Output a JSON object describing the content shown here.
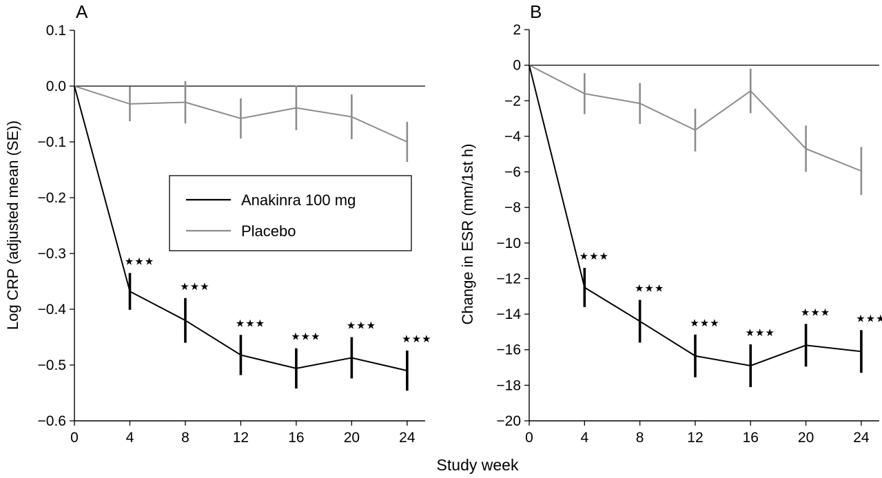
{
  "figure": {
    "xlabel": "Study week",
    "legend": {
      "entries": [
        "Anakinra 100 mg",
        "Placebo"
      ]
    },
    "significance_marker": "★★★",
    "colors": {
      "anakinra": "#000000",
      "placebo": "#8c8c8c"
    }
  },
  "chart_data": [
    {
      "type": "line",
      "panel_label": "A",
      "xlabel": "Study week",
      "ylabel": "Log CRP (adjusted mean (SE))",
      "x": [
        0,
        4,
        8,
        12,
        16,
        20,
        24
      ],
      "xticks": [
        "0",
        "4",
        "8",
        "12",
        "16",
        "20",
        "24"
      ],
      "xlim": [
        0,
        25.3
      ],
      "ylim": [
        -0.6,
        0.1
      ],
      "yticks": [
        "0.1",
        "0.0",
        "−0.1",
        "−0.2",
        "−0.3",
        "−0.4",
        "−0.5",
        "−0.6"
      ],
      "ytick_values": [
        0.1,
        0.0,
        -0.1,
        -0.2,
        -0.3,
        -0.4,
        -0.5,
        -0.6
      ],
      "reference_line": 0,
      "legend_position": "center",
      "series": [
        {
          "name": "Anakinra 100 mg",
          "color": "#000000",
          "values": [
            0,
            -0.368,
            -0.42,
            -0.482,
            -0.506,
            -0.487,
            -0.51
          ],
          "se": [
            0,
            0.033,
            0.04,
            0.036,
            0.036,
            0.037,
            0.036
          ],
          "significant": [
            false,
            true,
            true,
            true,
            true,
            true,
            true
          ]
        },
        {
          "name": "Placebo",
          "color": "#8c8c8c",
          "values": [
            0,
            -0.032,
            -0.029,
            -0.058,
            -0.039,
            -0.055,
            -0.1
          ],
          "se": [
            0,
            0.031,
            0.038,
            0.036,
            0.04,
            0.04,
            0.036
          ],
          "significant": [
            false,
            false,
            false,
            false,
            false,
            false,
            false
          ]
        }
      ]
    },
    {
      "type": "line",
      "panel_label": "B",
      "xlabel": "Study week",
      "ylabel": "Change in ESR (mm/1st h)",
      "x": [
        0,
        4,
        8,
        12,
        16,
        20,
        24
      ],
      "xticks": [
        "0",
        "4",
        "8",
        "12",
        "16",
        "20",
        "24"
      ],
      "xlim": [
        0,
        25.3
      ],
      "ylim": [
        -20,
        2
      ],
      "yticks": [
        "2",
        "0",
        "−2",
        "−4",
        "−6",
        "−8",
        "−10",
        "−12",
        "−14",
        "−16",
        "−18",
        "−20"
      ],
      "ytick_values": [
        2,
        0,
        -2,
        -4,
        -6,
        -8,
        -10,
        -12,
        -14,
        -16,
        -18,
        -20
      ],
      "reference_line": 0,
      "series": [
        {
          "name": "Anakinra 100 mg",
          "color": "#000000",
          "values": [
            0,
            -12.5,
            -14.4,
            -16.35,
            -16.9,
            -15.75,
            -16.1
          ],
          "se": [
            0,
            1.1,
            1.2,
            1.2,
            1.2,
            1.2,
            1.2
          ],
          "significant": [
            false,
            true,
            true,
            true,
            true,
            true,
            true
          ]
        },
        {
          "name": "Placebo",
          "color": "#8c8c8c",
          "values": [
            0,
            -1.6,
            -2.15,
            -3.65,
            -1.45,
            -4.7,
            -5.95
          ],
          "se": [
            0,
            1.15,
            1.15,
            1.2,
            1.25,
            1.3,
            1.35
          ],
          "significant": [
            false,
            false,
            false,
            false,
            false,
            false,
            false
          ]
        }
      ]
    }
  ]
}
